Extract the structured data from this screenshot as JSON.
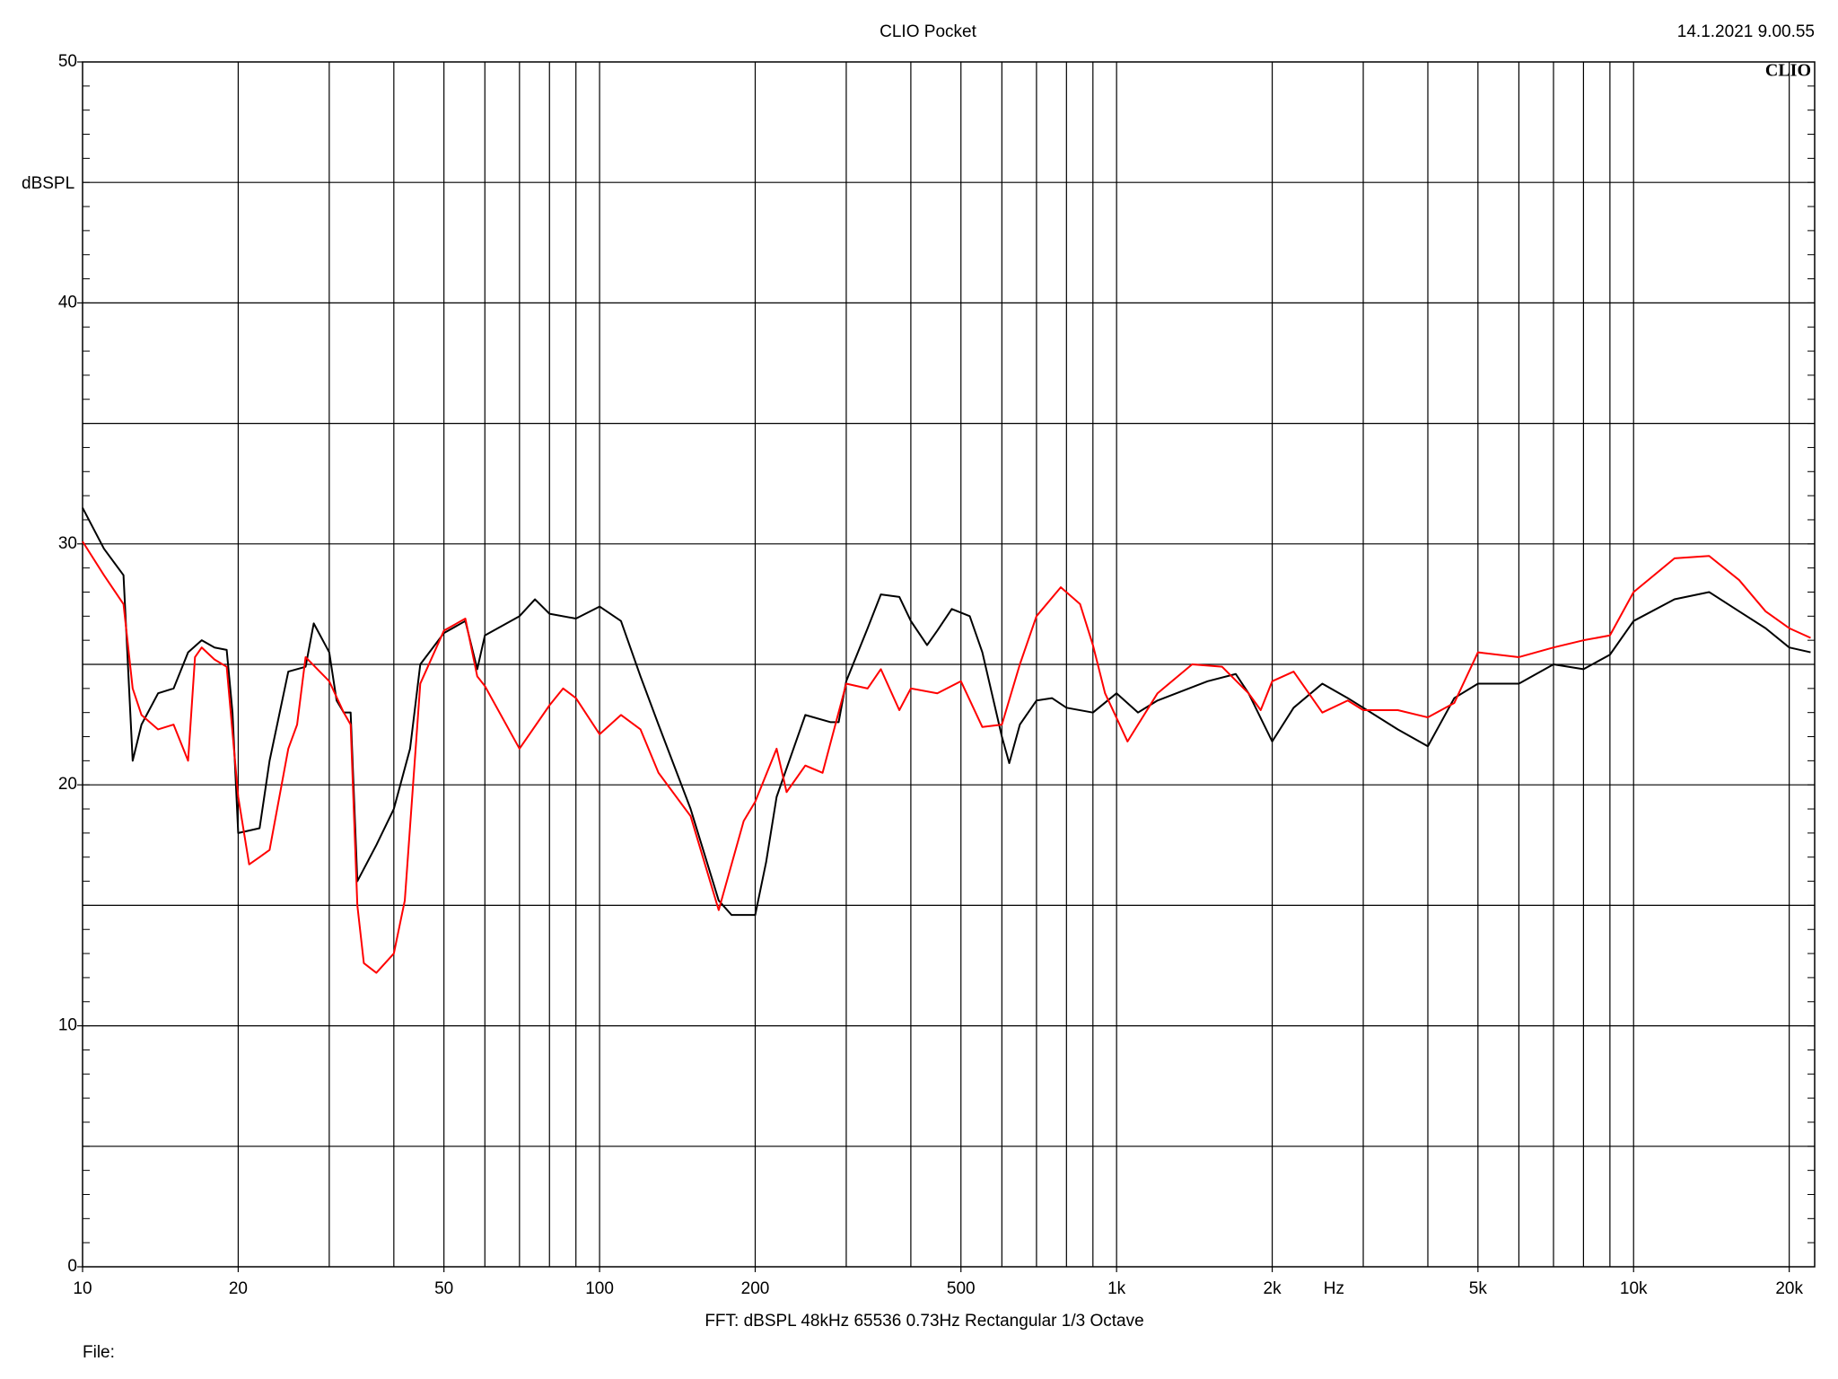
{
  "chart_data": {
    "type": "line",
    "title": "CLIO Pocket",
    "timestamp": "14.1.2021 9.00.55",
    "logo": "CLIO",
    "ylabel": "dBSPL",
    "xlabel": "Hz",
    "footer": "FFT:  dBSPL  48kHz  65536  0.73Hz  Rectangular  1/3 Octave",
    "file_label": "File:",
    "xscale": "log",
    "xlim": [
      10,
      22400
    ],
    "ylim": [
      0,
      50
    ],
    "yticks": [
      0,
      10,
      20,
      30,
      40,
      50
    ],
    "ygrid": [
      5,
      10,
      15,
      20,
      25,
      30,
      35,
      40,
      45
    ],
    "yminor_step": 1,
    "xticks": [
      10,
      20,
      50,
      100,
      200,
      500,
      {
        "value": 1000,
        "label": "1k"
      },
      {
        "value": 2000,
        "label": "2k"
      },
      {
        "value": 5000,
        "label": "5k"
      },
      {
        "value": 10000,
        "label": "10k"
      },
      {
        "value": 20000,
        "label": "20k"
      }
    ],
    "xgrid": [
      20,
      30,
      40,
      50,
      60,
      70,
      80,
      90,
      100,
      200,
      300,
      400,
      500,
      600,
      700,
      800,
      900,
      1000,
      2000,
      3000,
      4000,
      5000,
      6000,
      7000,
      8000,
      9000,
      10000,
      20000
    ],
    "grid": true,
    "series": [
      {
        "name": "black",
        "color": "#000000",
        "x": [
          10,
          11,
          12,
          12.5,
          13,
          14,
          15,
          16,
          17,
          18,
          19,
          19.5,
          20,
          22,
          23,
          25,
          27,
          28,
          30,
          31,
          32,
          33,
          34,
          37,
          40,
          43,
          45,
          50,
          55,
          58,
          60,
          70,
          75,
          80,
          90,
          100,
          110,
          120,
          130,
          150,
          170,
          180,
          200,
          210,
          220,
          250,
          280,
          290,
          300,
          330,
          350,
          380,
          400,
          430,
          450,
          480,
          520,
          550,
          600,
          620,
          650,
          700,
          750,
          800,
          900,
          1000,
          1100,
          1200,
          1500,
          1700,
          1800,
          2000,
          2200,
          2500,
          2800,
          3000,
          3500,
          4000,
          4500,
          5000,
          6000,
          7000,
          8000,
          9000,
          10000,
          12000,
          14000,
          16000,
          18000,
          20000,
          22000
        ],
        "values": [
          31.5,
          29.8,
          28.7,
          21.0,
          22.5,
          23.8,
          24.0,
          25.5,
          26.0,
          25.7,
          25.6,
          23.0,
          18.0,
          18.2,
          21.0,
          24.7,
          24.9,
          26.7,
          25.5,
          23.5,
          23.0,
          23.0,
          16.0,
          17.5,
          19.0,
          21.5,
          25.0,
          26.3,
          26.8,
          24.8,
          26.2,
          27.0,
          27.7,
          27.1,
          26.9,
          27.4,
          26.8,
          24.5,
          22.5,
          19.0,
          15.2,
          14.6,
          14.6,
          16.8,
          19.5,
          22.9,
          22.6,
          22.6,
          24.3,
          26.5,
          27.9,
          27.8,
          26.8,
          25.8,
          26.4,
          27.3,
          27.0,
          25.5,
          22.0,
          20.9,
          22.5,
          23.5,
          23.6,
          23.2,
          23.0,
          23.8,
          23.0,
          23.5,
          24.3,
          24.6,
          23.8,
          21.8,
          23.2,
          24.2,
          23.6,
          23.2,
          22.3,
          21.6,
          23.6,
          24.2,
          24.2,
          25.0,
          24.8,
          25.4,
          26.8,
          27.7,
          28.0,
          27.2,
          26.5,
          25.7,
          25.5
        ]
      },
      {
        "name": "red",
        "color": "#ff0000",
        "x": [
          10,
          11,
          12,
          12.5,
          13,
          14,
          15,
          16,
          16.5,
          17,
          18,
          19,
          20,
          21,
          22,
          23,
          25,
          26,
          27,
          30,
          32,
          33,
          34,
          35,
          37,
          40,
          42,
          45,
          50,
          55,
          58,
          60,
          70,
          80,
          85,
          90,
          100,
          110,
          120,
          130,
          150,
          170,
          190,
          200,
          220,
          230,
          250,
          270,
          300,
          330,
          350,
          380,
          400,
          450,
          500,
          550,
          600,
          650,
          700,
          780,
          850,
          900,
          950,
          1050,
          1200,
          1400,
          1600,
          1800,
          1900,
          2000,
          2200,
          2500,
          2800,
          3000,
          3500,
          4000,
          4500,
          5000,
          6000,
          7000,
          8000,
          9000,
          10000,
          12000,
          14000,
          16000,
          18000,
          20000,
          22000
        ],
        "values": [
          30.1,
          28.7,
          27.5,
          24.0,
          22.9,
          22.3,
          22.5,
          21.0,
          25.3,
          25.7,
          25.2,
          24.9,
          19.5,
          16.7,
          17.0,
          17.3,
          21.5,
          22.5,
          25.3,
          24.3,
          23.0,
          22.5,
          15.0,
          12.6,
          12.2,
          13.0,
          15.2,
          24.2,
          26.4,
          26.9,
          24.5,
          24.1,
          21.5,
          23.3,
          24.0,
          23.6,
          22.1,
          22.9,
          22.3,
          20.5,
          18.7,
          14.8,
          18.5,
          19.3,
          21.5,
          19.7,
          20.8,
          20.5,
          24.2,
          24.0,
          24.8,
          23.1,
          24.0,
          23.8,
          24.3,
          22.4,
          22.5,
          25.0,
          27.0,
          28.2,
          27.5,
          25.8,
          23.8,
          21.8,
          23.8,
          25.0,
          24.9,
          23.8,
          23.1,
          24.3,
          24.7,
          23.0,
          23.5,
          23.1,
          23.1,
          22.8,
          23.4,
          25.5,
          25.3,
          25.7,
          26.0,
          26.2,
          28.0,
          29.4,
          29.5,
          28.5,
          27.2,
          26.5,
          26.1
        ]
      }
    ]
  }
}
